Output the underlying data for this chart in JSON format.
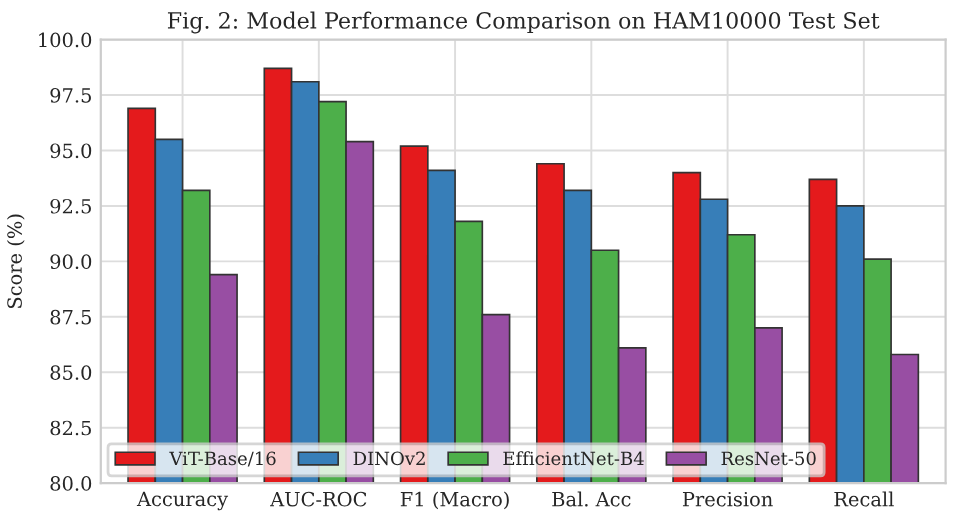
{
  "chart_data": {
    "type": "bar",
    "title": "Fig. 2: Model Performance Comparison on HAM10000 Test Set",
    "ylabel": "Score (%)",
    "categories": [
      "Accuracy",
      "AUC-ROC",
      "F1 (Macro)",
      "Bal. Acc",
      "Precision",
      "Recall"
    ],
    "series": [
      {
        "name": "ViT-Base/16",
        "color": "#e41a1c",
        "values": [
          96.9,
          98.7,
          95.2,
          94.4,
          94.0,
          93.7
        ]
      },
      {
        "name": "DINOv2",
        "color": "#377eb8",
        "values": [
          95.5,
          98.1,
          94.1,
          93.2,
          92.8,
          92.5
        ]
      },
      {
        "name": "EfficientNet-B4",
        "color": "#4daf4a",
        "values": [
          93.2,
          97.2,
          91.8,
          90.5,
          91.2,
          90.1
        ]
      },
      {
        "name": "ResNet-50",
        "color": "#984ea3",
        "values": [
          89.4,
          95.4,
          87.6,
          86.1,
          87.0,
          85.8
        ]
      }
    ],
    "ylim": [
      80,
      100
    ],
    "yticks": [
      {
        "value": 80,
        "label": "80.0"
      },
      82.5,
      {
        "value": 85,
        "label": "85.0"
      },
      87.5,
      {
        "value": 90,
        "label": "90.0"
      },
      92.5,
      {
        "value": 95,
        "label": "95.0"
      },
      97.5,
      {
        "value": 100,
        "label": "100.0"
      }
    ],
    "grid": true,
    "legend": "lower left"
  }
}
